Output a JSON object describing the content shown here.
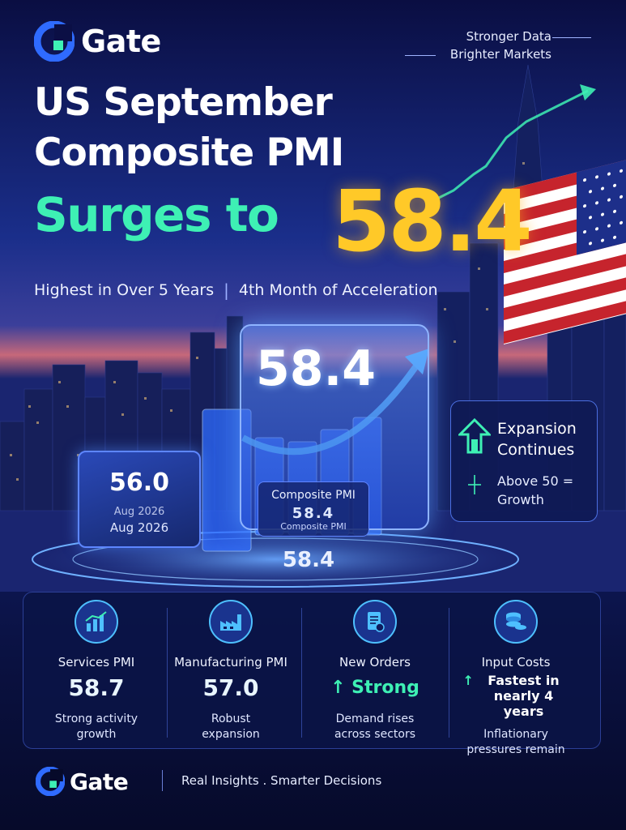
{
  "brand": {
    "name": "Gate",
    "accent": "#2f6bff",
    "green": "#3ef0b4",
    "gold": "#ffc928"
  },
  "tagline": {
    "line1": "Stronger Data",
    "line2": "Brighter Markets"
  },
  "headline": {
    "line1": "US September",
    "line2": "Composite PMI",
    "line3": "Surges to",
    "value": "58.4"
  },
  "subtitle": {
    "left": "Highest in Over 5 Years",
    "separator": "|",
    "right": "4th Month of Acceleration"
  },
  "hero": {
    "prev_value": "56.0",
    "prev_label_1": "Aug 2026",
    "prev_label_2": "Aug 2026",
    "current_value": "58.4",
    "composite_label": "Composite PMI",
    "composite_garbled": "58.4",
    "composite_sub": "Composite PMI",
    "base_value": "58.4"
  },
  "side_card": {
    "icon": "up-arrow-house-icon",
    "title": "Expansion Continues",
    "sub_icon": "sparkle-icon",
    "sub": "Above 50 = Growth"
  },
  "metrics": [
    {
      "icon": "bar-chart-icon",
      "label": "Services PMI",
      "value": "58.7",
      "desc": "Strong activity growth"
    },
    {
      "icon": "factory-icon",
      "label": "Manufacturing PMI",
      "value": "57.0",
      "desc": "Robust expansion"
    },
    {
      "icon": "document-icon",
      "label": "New Orders",
      "value": "Strong",
      "arrow": "↑",
      "desc": "Demand rises across sectors"
    },
    {
      "icon": "coins-icon",
      "label": "Input Costs",
      "value": "Fastest in nearly 4 years",
      "arrow": "↑",
      "desc": "Inflationary pressures remain"
    }
  ],
  "footer": {
    "brand": "Gate",
    "text": "Real Insights . Smarter Decisions"
  }
}
